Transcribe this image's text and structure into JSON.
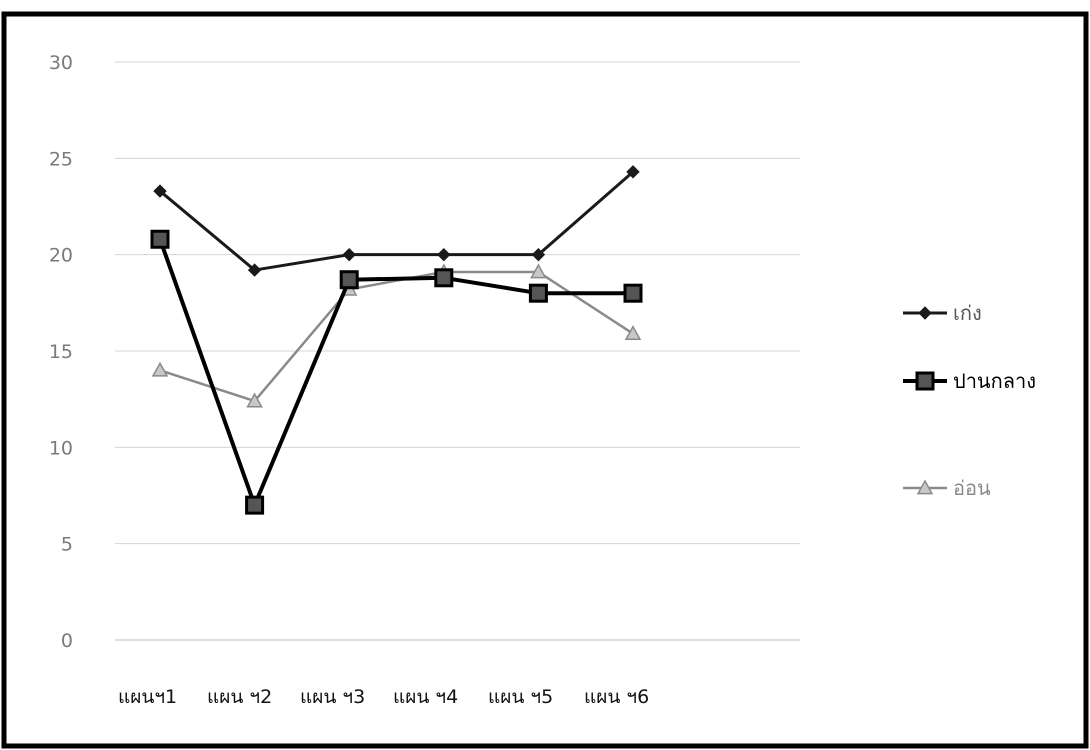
{
  "chart_data": {
    "type": "line",
    "title": "",
    "xlabel": "",
    "ylabel": "",
    "categories": [
      "แผนฯ1",
      "แผน ฯ2",
      "แผน ฯ3",
      "แผน ฯ4",
      "แผน ฯ5",
      "แผน ฯ6"
    ],
    "ylim": [
      0,
      30
    ],
    "yticks": [
      0,
      5,
      10,
      15,
      20,
      25,
      30
    ],
    "grid": true,
    "legend_position": "right",
    "series": [
      {
        "name": "เก่ง",
        "values": [
          23.3,
          19.2,
          20.0,
          20.0,
          20.0,
          24.3
        ],
        "color": "#1a1a1a",
        "marker": "diamond"
      },
      {
        "name": "ปานกลาง",
        "values": [
          20.8,
          7.0,
          18.7,
          18.8,
          18.0,
          18.0
        ],
        "color": "#000000",
        "marker": "square"
      },
      {
        "name": "อ่อน",
        "values": [
          14.0,
          12.4,
          18.2,
          19.1,
          19.1,
          15.9
        ],
        "color": "#8a8a8a",
        "marker": "triangle"
      }
    ]
  }
}
